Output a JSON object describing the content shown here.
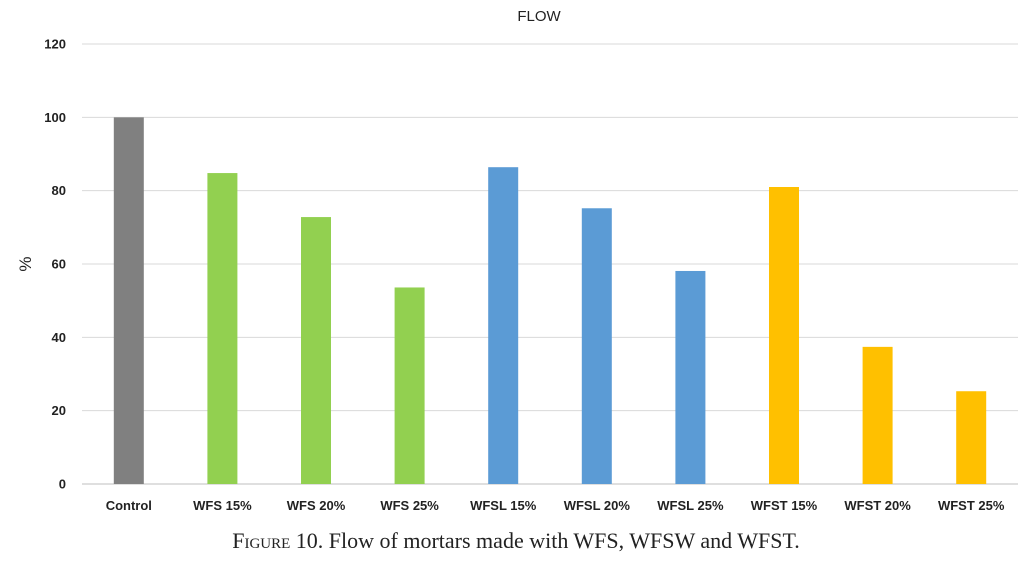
{
  "chart_data": {
    "type": "bar",
    "title": "FLOW",
    "xlabel": "",
    "ylabel": "%",
    "ylim": [
      0,
      120
    ],
    "yticks": [
      0,
      20,
      40,
      60,
      80,
      100,
      120
    ],
    "grid": true,
    "categories": [
      "Control",
      "WFS 15%",
      "WFS 20%",
      "WFS 25%",
      "WFSL 15%",
      "WFSL 20%",
      "WFSL 25%",
      "WFST 15%",
      "WFST 20%",
      "WFST 25%"
    ],
    "values": [
      100,
      84.8,
      72.8,
      53.6,
      86.4,
      75.2,
      58.1,
      81.0,
      37.4,
      25.3
    ],
    "colors": [
      "#808080",
      "#92d050",
      "#92d050",
      "#92d050",
      "#5b9bd5",
      "#5b9bd5",
      "#5b9bd5",
      "#ffc000",
      "#ffc000",
      "#ffc000"
    ]
  },
  "caption": {
    "prefix": "Figure",
    "text": " 10. Flow of mortars made with WFS, WFSW and WFST."
  }
}
